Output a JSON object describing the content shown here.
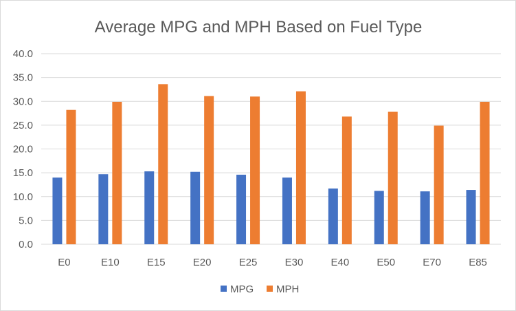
{
  "chart_data": {
    "type": "bar",
    "title": "Average MPG and MPH Based on Fuel Type",
    "categories": [
      "E0",
      "E10",
      "E15",
      "E20",
      "E25",
      "E30",
      "E40",
      "E50",
      "E70",
      "E85"
    ],
    "series": [
      {
        "name": "MPG",
        "color": "#4472C4",
        "values": [
          14.0,
          14.7,
          15.3,
          15.2,
          14.6,
          14.0,
          11.7,
          11.2,
          11.1,
          11.4
        ]
      },
      {
        "name": "MPH",
        "color": "#ED7D31",
        "values": [
          28.2,
          29.9,
          33.6,
          31.1,
          31.0,
          32.1,
          26.8,
          27.8,
          24.9,
          29.9
        ]
      }
    ],
    "ylim": [
      0,
      40
    ],
    "yticks": [
      "0.0",
      "5.0",
      "10.0",
      "15.0",
      "20.0",
      "25.0",
      "30.0",
      "35.0",
      "40.0"
    ],
    "grid": true,
    "gridColor": "#d9d9d9",
    "legend": "bottom"
  }
}
